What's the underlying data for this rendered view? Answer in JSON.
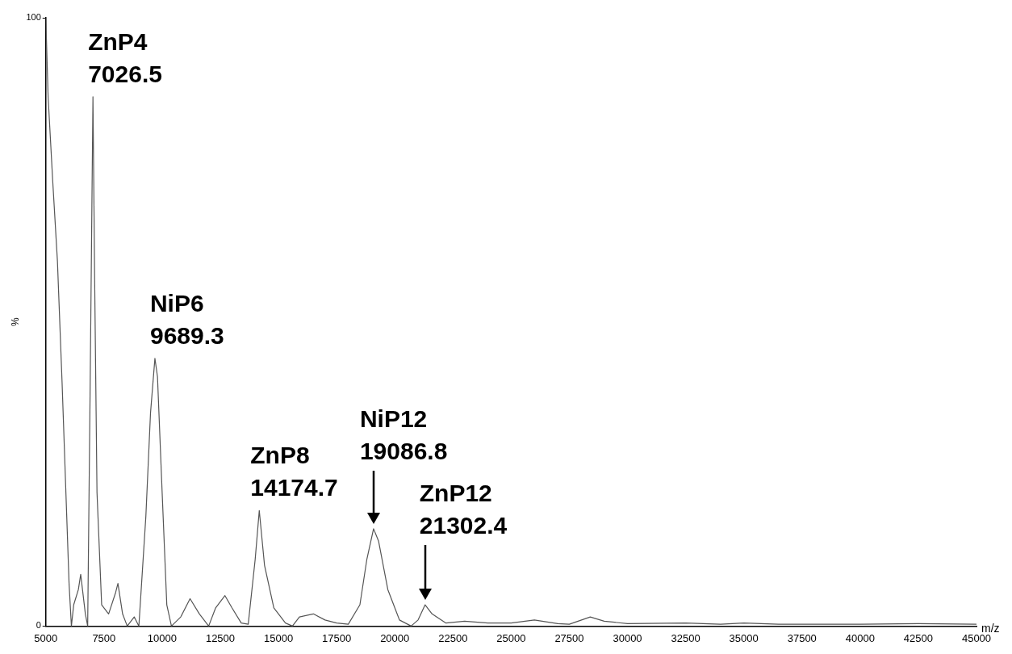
{
  "chart_data": {
    "type": "line",
    "xlabel": "m/z",
    "ylabel": "%",
    "xlim": [
      5000,
      45000
    ],
    "xticks": [
      5000,
      7500,
      10000,
      12500,
      15000,
      17500,
      20000,
      22500,
      25000,
      27500,
      30000,
      32500,
      35000,
      37500,
      40000,
      42500,
      45000
    ],
    "ylim": [
      0,
      100
    ],
    "yticks": [
      0,
      100
    ],
    "grid": false,
    "marker": "none",
    "series": [
      {
        "color": "#555555",
        "x": [
          5000,
          5100,
          5200,
          5300,
          5500,
          5700,
          5900,
          6000,
          6100,
          6200,
          6400,
          6500,
          6700,
          6800,
          6900,
          7026.5,
          7100,
          7200,
          7400,
          7700,
          8000,
          8100,
          8300,
          8500,
          8800,
          9000,
          9300,
          9500,
          9689.3,
          9800,
          10000,
          10200,
          10400,
          10800,
          11200,
          11600,
          12000,
          12300,
          12700,
          13000,
          13400,
          13700,
          14000,
          14174.7,
          14400,
          14800,
          15300,
          15600,
          15900,
          16500,
          17000,
          17500,
          18000,
          18500,
          18800,
          19086.8,
          19300,
          19700,
          20200,
          20700,
          21000,
          21302.4,
          21600,
          22200,
          23000,
          24000,
          25000,
          26000,
          27000,
          27500,
          28400,
          29000,
          30000,
          32500,
          34000,
          35000,
          36500,
          40000,
          42500,
          45000
        ],
        "values": [
          100,
          87,
          80,
          73,
          60,
          40,
          18,
          7,
          0,
          3.5,
          6,
          8.5,
          2,
          0,
          37,
          87,
          57,
          22,
          3.5,
          2,
          5.5,
          7,
          2,
          0,
          1.5,
          0,
          18,
          35,
          44,
          41,
          22,
          3.5,
          0,
          1.5,
          4.5,
          2,
          0,
          3,
          5,
          3,
          0.5,
          0.3,
          11,
          19,
          10,
          3,
          0.5,
          0,
          1.5,
          2,
          1,
          0.5,
          0.3,
          3.5,
          11,
          16,
          14,
          6,
          1,
          0,
          1,
          3.5,
          2,
          0.5,
          0.8,
          0.5,
          0.5,
          1,
          0.4,
          0.3,
          1.5,
          0.8,
          0.4,
          0.5,
          0.3,
          0.5,
          0.3,
          0.3,
          0.4,
          0.3
        ]
      }
    ],
    "annotations": [
      {
        "text": "ZnP4\n7026.5",
        "x": 7026.5,
        "y": 87
      },
      {
        "text": "NiP6\n9689.3",
        "x": 9689.3,
        "y": 44
      },
      {
        "text": "ZnP8\n14174.7",
        "x": 14174.7,
        "y": 19
      },
      {
        "text": "NiP12\n19086.8",
        "x": 19086.8,
        "y": 16
      },
      {
        "text": "ZnP12\n21302.4",
        "x": 21302.4,
        "y": 3.5
      }
    ]
  }
}
